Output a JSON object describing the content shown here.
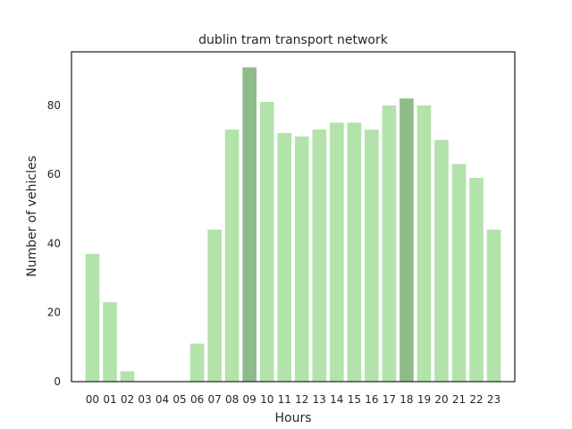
{
  "chart_data": {
    "type": "bar",
    "title": "dublin tram transport network",
    "xlabel": "Hours",
    "ylabel": "Number of vehicles",
    "categories": [
      "00",
      "01",
      "02",
      "03",
      "04",
      "05",
      "06",
      "07",
      "08",
      "09",
      "10",
      "11",
      "12",
      "13",
      "14",
      "15",
      "16",
      "17",
      "18",
      "19",
      "20",
      "21",
      "22",
      "23"
    ],
    "values": [
      37,
      23,
      3,
      0,
      0,
      0,
      11,
      44,
      73,
      91,
      81,
      72,
      71,
      73,
      75,
      75,
      73,
      80,
      82,
      80,
      70,
      63,
      59,
      44
    ],
    "highlight": [
      "09",
      "18"
    ],
    "ylim": [
      0,
      95.5
    ],
    "yticks": [
      0,
      20,
      40,
      60,
      80
    ],
    "grid": false,
    "colors": {
      "bar": "#b3e2ab",
      "highlight": "#8fbb8b",
      "axis": "#262626",
      "background": "#ffffff"
    }
  }
}
